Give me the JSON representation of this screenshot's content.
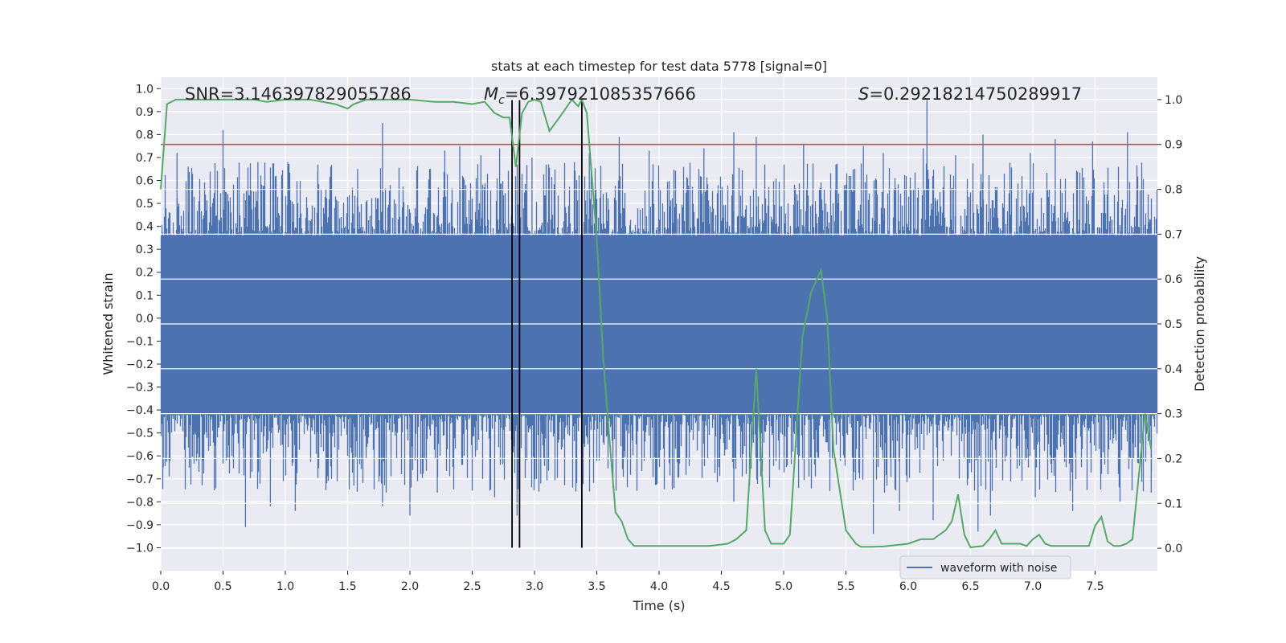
{
  "chart_data": {
    "type": "line",
    "title": "stats at each timestep for test data 5778 [signal=0]",
    "xlabel": "Time (s)",
    "ylabel_left": "Whitened strain",
    "ylabel_right": "Detection probability",
    "xlim": [
      0,
      8
    ],
    "ylim_left": [
      -1.1,
      1.05
    ],
    "ylim_right": [
      -0.05,
      1.05
    ],
    "x_ticks": [
      "0.0",
      "0.5",
      "1.0",
      "1.5",
      "2.0",
      "2.5",
      "3.0",
      "3.5",
      "4.0",
      "4.5",
      "5.0",
      "5.5",
      "6.0",
      "6.5",
      "7.0",
      "7.5"
    ],
    "y_left_ticks": [
      "1.0",
      "0.9",
      "0.8",
      "0.7",
      "0.6",
      "0.5",
      "0.4",
      "0.3",
      "0.2",
      "0.1",
      "0.0",
      "-0.1",
      "-0.2",
      "-0.3",
      "-0.4",
      "-0.5",
      "-0.6",
      "-0.7",
      "-0.8",
      "-0.9",
      "-1.0"
    ],
    "y_right_ticks": [
      "1.0",
      "0.9",
      "0.8",
      "0.7",
      "0.6",
      "0.5",
      "0.4",
      "0.3",
      "0.2",
      "0.1",
      "0.0"
    ],
    "annotations": {
      "snr": "SNR=3.146397829055786",
      "mc_symbol": "M",
      "mc_sub": "c",
      "mc_value": "=6.397921085357666",
      "s_symbol": "S",
      "s_value": "=0.29218214750289917"
    },
    "legend": {
      "label": "waveform with noise",
      "location": "lower-right"
    },
    "threshold": {
      "value": 0.9,
      "axis": "right",
      "color": "#c44e52"
    },
    "vlines": [
      2.82,
      2.88,
      3.38
    ],
    "vline_ymin": -1.0,
    "vline_ymax": 0.95,
    "waveform": {
      "name": "waveform with noise",
      "color": "#4c72b0",
      "band": [
        -0.42,
        0.36
      ],
      "peaks": [
        [
          0.13,
          0.72
        ],
        [
          0.22,
          0.66
        ],
        [
          0.5,
          0.82
        ],
        [
          0.78,
          0.68
        ],
        [
          1.02,
          0.68
        ],
        [
          1.26,
          0.64
        ],
        [
          1.58,
          0.65
        ],
        [
          1.78,
          0.85
        ],
        [
          2.28,
          0.73
        ],
        [
          2.4,
          0.75
        ],
        [
          2.57,
          0.71
        ],
        [
          2.72,
          0.74
        ],
        [
          2.98,
          0.7
        ],
        [
          3.32,
          0.68
        ],
        [
          3.44,
          0.72
        ],
        [
          3.68,
          0.79
        ],
        [
          3.92,
          0.73
        ],
        [
          4.36,
          0.74
        ],
        [
          4.6,
          0.81
        ],
        [
          4.78,
          0.79
        ],
        [
          5.16,
          0.76
        ],
        [
          5.42,
          0.67
        ],
        [
          5.64,
          0.75
        ],
        [
          5.8,
          0.72
        ],
        [
          6.12,
          0.74
        ],
        [
          6.15,
          0.95
        ],
        [
          6.38,
          0.71
        ],
        [
          6.6,
          0.8
        ],
        [
          6.98,
          0.72
        ],
        [
          7.18,
          0.78
        ],
        [
          7.48,
          0.77
        ],
        [
          7.76,
          0.81
        ]
      ],
      "troughs": [
        [
          0.02,
          -0.65
        ],
        [
          0.43,
          -0.75
        ],
        [
          0.68,
          -0.91
        ],
        [
          0.88,
          -0.82
        ],
        [
          1.08,
          -0.84
        ],
        [
          1.55,
          -0.73
        ],
        [
          1.78,
          -0.82
        ],
        [
          2.0,
          -0.86
        ],
        [
          2.22,
          -0.76
        ],
        [
          2.68,
          -0.78
        ],
        [
          2.86,
          -0.86
        ],
        [
          3.05,
          -0.72
        ],
        [
          3.38,
          -0.88
        ],
        [
          3.63,
          -0.74
        ],
        [
          4.12,
          -0.74
        ],
        [
          4.6,
          -0.8
        ],
        [
          5.12,
          -0.74
        ],
        [
          5.72,
          -0.94
        ],
        [
          5.93,
          -0.84
        ],
        [
          6.2,
          -0.88
        ],
        [
          6.56,
          -0.93
        ],
        [
          6.66,
          -0.86
        ],
        [
          7.02,
          -0.78
        ],
        [
          7.32,
          -0.84
        ],
        [
          7.7,
          -0.8
        ],
        [
          7.95,
          -0.76
        ]
      ]
    },
    "detection_probability": {
      "name": "detection probability",
      "color": "#55a868",
      "x": [
        0.0,
        0.05,
        0.12,
        0.25,
        0.5,
        0.75,
        0.85,
        1.0,
        1.2,
        1.4,
        1.5,
        1.55,
        1.65,
        1.8,
        2.0,
        2.2,
        2.35,
        2.5,
        2.6,
        2.68,
        2.75,
        2.8,
        2.85,
        2.9,
        2.95,
        3.0,
        3.05,
        3.12,
        3.2,
        3.3,
        3.35,
        3.38,
        3.42,
        3.5,
        3.55,
        3.6,
        3.65,
        3.7,
        3.75,
        3.8,
        4.0,
        4.2,
        4.4,
        4.55,
        4.62,
        4.7,
        4.78,
        4.85,
        4.9,
        5.0,
        5.05,
        5.15,
        5.22,
        5.3,
        5.35,
        5.4,
        5.5,
        5.58,
        5.62,
        5.7,
        5.8,
        6.0,
        6.1,
        6.2,
        6.3,
        6.35,
        6.4,
        6.45,
        6.5,
        6.6,
        6.65,
        6.7,
        6.75,
        6.8,
        6.9,
        6.95,
        7.0,
        7.05,
        7.1,
        7.15,
        7.2,
        7.3,
        7.35,
        7.4,
        7.45,
        7.5,
        7.55,
        7.6,
        7.65,
        7.7,
        7.75,
        7.8,
        7.9,
        7.95
      ],
      "y": [
        0.8,
        0.99,
        1.0,
        1.0,
        1.0,
        1.0,
        0.995,
        1.0,
        1.0,
        0.99,
        0.98,
        0.99,
        1.0,
        1.0,
        1.0,
        0.995,
        0.995,
        0.99,
        0.995,
        0.97,
        0.96,
        0.96,
        0.85,
        0.97,
        0.995,
        1.0,
        0.995,
        0.93,
        0.96,
        1.0,
        0.985,
        1.0,
        0.97,
        0.69,
        0.43,
        0.25,
        0.08,
        0.06,
        0.02,
        0.005,
        0.005,
        0.005,
        0.005,
        0.01,
        0.02,
        0.04,
        0.4,
        0.04,
        0.01,
        0.01,
        0.03,
        0.47,
        0.57,
        0.62,
        0.51,
        0.22,
        0.04,
        0.01,
        0.003,
        0.003,
        0.004,
        0.01,
        0.02,
        0.02,
        0.04,
        0.06,
        0.12,
        0.03,
        0.002,
        0.005,
        0.02,
        0.04,
        0.01,
        0.01,
        0.01,
        0.005,
        0.02,
        0.03,
        0.01,
        0.005,
        0.005,
        0.005,
        0.005,
        0.005,
        0.005,
        0.05,
        0.07,
        0.015,
        0.005,
        0.005,
        0.01,
        0.02,
        0.3,
        0.22
      ]
    }
  }
}
